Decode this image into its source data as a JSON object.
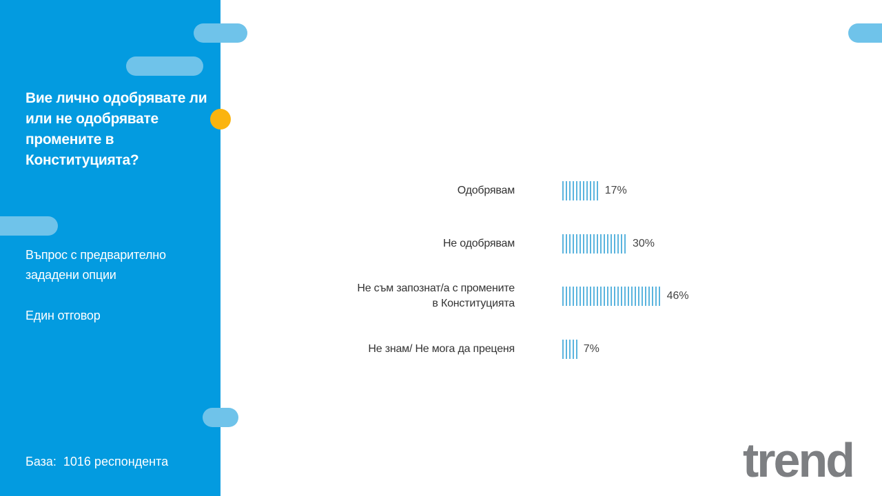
{
  "panel": {
    "title": "Вие лично одобрявате ли или не одобрявате промените в Конституцията?",
    "notes": [
      "Въпрос с предварително зададени опции",
      "Един отговор"
    ],
    "base": "База:  1016 респондента"
  },
  "logo": "trend",
  "chart_data": {
    "type": "bar",
    "orientation": "horizontal",
    "color": "#5ab4de",
    "categories": [
      "Одобрявам",
      "Не одобрявам",
      "Не съм запознат/а с промените в Конституцията",
      "Не знам/ Не мога да преценя"
    ],
    "values": [
      17,
      30,
      46,
      7
    ],
    "value_labels": [
      "17%",
      "30%",
      "46%",
      "7%"
    ]
  }
}
